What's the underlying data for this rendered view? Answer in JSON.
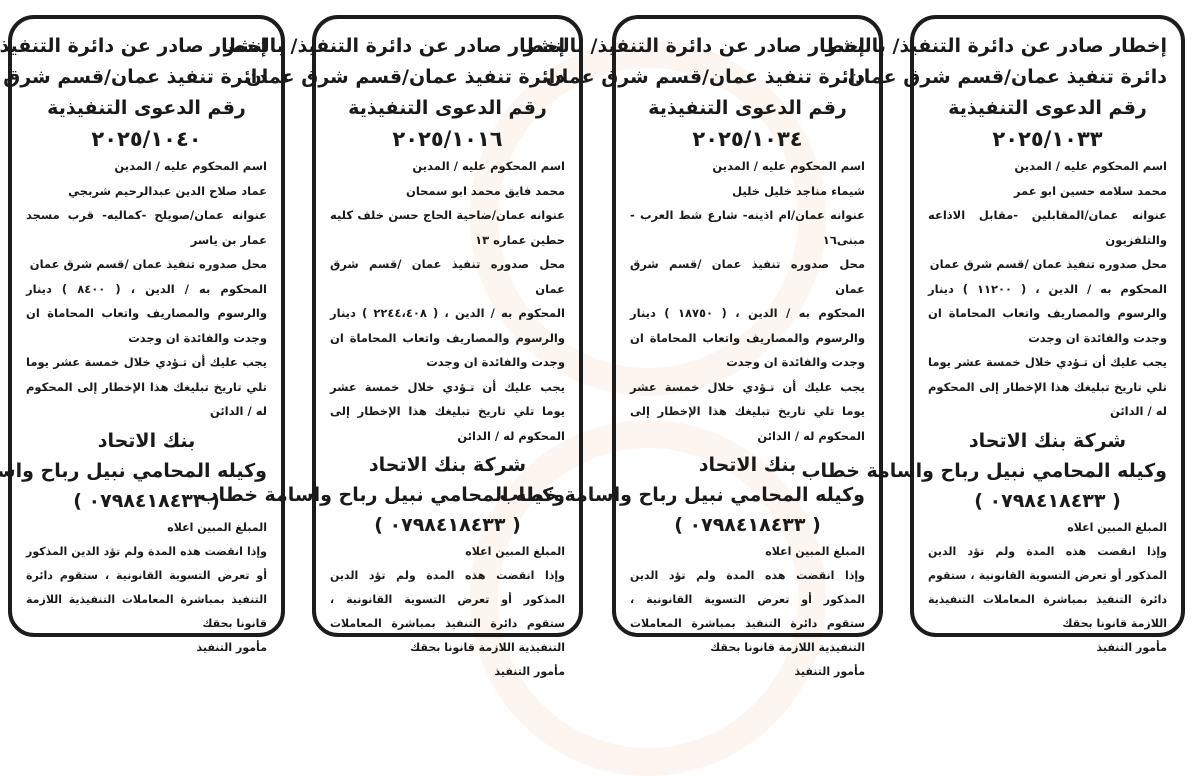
{
  "notices": [
    {
      "title_1": "إخطار صادر عن دائرة التنفيذ/ بالنشر",
      "title_2": "دائرة تنفيذ عمان/قسم شرق عمان",
      "title_3": "رقم الدعوى التنفيذية",
      "case_number": "٢٠٢٥/١٠٤٠",
      "debtor_label": "اسم المحكوم عليه / المدين",
      "debtor_name": "عماد صلاح الدين عبدالرحيم شربجي",
      "address": "عنوانه عمان/صويلح -كماليه- قرب مسجد عمار بن ياسر",
      "issued_at": "محل صدوره تنفيذ عمان /قسم شرق عمان",
      "amount": "المحكوم به / الدين ، ( ٨٤٠٠ ) دينار والرسوم والمصاريف واتعاب المحاماة ان وجدت والفائدة ان وجدت",
      "obligation": "يجب عليك أن تـؤدي  خلال خمسة عشر يوما تلي تاريخ تبليغك هذا الإخطار إلى المحكوم له / الدائن",
      "creditor": "بنك الاتحاد",
      "lawyer": "وكيله المحامي نبيل رباح واسامة خطاب",
      "phone": "( ٠٧٩٨٤١٨٤٣٣ )",
      "amount_ref": "المبلغ المبين اعلاه",
      "warning": "وإذا انقضت هذه المدة ولم تؤد  الدين المذكور أو تعرض التسوية القانونية ، ستقوم دائرة التنفيذ بمباشرة المعاملات التنفيذية اللازمة قانونا بحقك",
      "signature": "مأمور التنفيذ"
    },
    {
      "title_1": "إخطار صادر عن دائرة التنفيذ/ بالنشر",
      "title_2": "دائرة تنفيذ عمان/قسم شرق عمان",
      "title_3": "رقم الدعوى التنفيذية",
      "case_number": "٢٠٢٥/١٠١٦",
      "debtor_label": "اسم المحكوم عليه / المدين",
      "debtor_name": "محمد فايق محمد ابو سمحان",
      "address": "عنوانه عمان/ضاحية الحاج حسن خلف كليه حطين عماره ١٣",
      "issued_at": "محل صدوره تنفيذ عمان /قسم شرق عمان",
      "amount": "المحكوم به / الدين ، ( ٢٢٤٤،٤٠٨ ) دينار والرسوم والمصاريف واتعاب المحاماة ان وجدت والفائدة ان وجدت",
      "obligation": "يجب عليك أن تـؤدي  خلال خمسة عشر يوما تلي تاريخ تبليغك هذا الإخطار إلى المحكوم له / الدائن",
      "creditor": "شركة بنك الاتحاد",
      "lawyer": "وكيله المحامي نبيل رباح واسامة خطاب",
      "phone": "( ٠٧٩٨٤١٨٤٣٣ )",
      "amount_ref": "المبلغ المبين اعلاه",
      "warning": "وإذا انقضت هذه المدة ولم تؤد  الدين المذكور أو تعرض التسوية القانونية ، ستقوم دائرة التنفيذ بمباشرة المعاملات التنفيذية اللازمة قانونا بحقك",
      "signature": "مأمور التنفيذ"
    },
    {
      "title_1": "إخطار صادر عن دائرة التنفيذ/ بالنشر",
      "title_2": "دائرة تنفيذ عمان/قسم شرق عمان",
      "title_3": "رقم الدعوى التنفيذية",
      "case_number": "٢٠٢٥/١٠٣٤",
      "debtor_label": "اسم المحكوم عليه / المدين",
      "debtor_name": "شيماء مناجد خليل خليل",
      "address": "عنوانه عمان/ام اذينه- شارع شط العرب - مبنى١٦",
      "issued_at": "محل صدوره تنفيذ عمان /قسم شرق عمان",
      "amount": "المحكوم به / الدين ، ( ١٨٧٥٠ ) دينار والرسوم والمصاريف واتعاب المحاماة ان وجدت والفائدة ان وجدت",
      "obligation": "يجب عليك أن تـؤدي  خلال خمسة عشر يوما تلي تاريخ تبليغك هذا الإخطار إلى المحكوم له / الدائن",
      "creditor": "بنك الاتحاد",
      "lawyer": "وكيله المحامي نبيل رباح واسامة خطاب",
      "phone": "( ٠٧٩٨٤١٨٤٣٣ )",
      "amount_ref": "المبلغ المبين اعلاه",
      "warning": "وإذا انقضت هذه المدة ولم تؤد  الدين المذكور أو تعرض التسوية القانونية ، ستقوم دائرة التنفيذ بمباشرة المعاملات التنفيذية اللازمة قانونا بحقك",
      "signature": "مأمور التنفيذ"
    },
    {
      "title_1": "إخطار صادر عن دائرة التنفيذ/ بالنشر",
      "title_2": "دائرة تنفيذ عمان/قسم شرق عمان",
      "title_3": "رقم الدعوى التنفيذية",
      "case_number": "٢٠٢٥/١٠٣٣",
      "debtor_label": "اسم المحكوم عليه / المدين",
      "debtor_name": "محمد سلامه حسين ابو عمر",
      "address": "عنوانه عمان/المقابلين -مقابل الاذاعه والتلفزيون",
      "issued_at": "محل صدوره تنفيذ عمان /قسم شرق عمان",
      "amount": "المحكوم به / الدين ، ( ١١٢٠٠ ) دينار والرسوم والمصاريف واتعاب المحاماة ان وجدت والفائدة ان وجدت",
      "obligation": "يجب عليك أن تـؤدي  خلال خمسة عشر يوما تلي تاريخ تبليغك هذا الإخطار إلى المحكوم له / الدائن",
      "creditor": "شركة بنك الاتحاد",
      "lawyer": "وكيله المحامي نبيل رباح واسامة خطاب",
      "phone": "( ٠٧٩٨٤١٨٤٣٣ )",
      "amount_ref": "المبلغ المبين اعلاه",
      "warning": "وإذا انقضت هذه المدة ولم تؤد  الدين المذكور أو تعرض التسوية القانونية ، ستقوم دائرة التنفيذ بمباشرة المعاملات التنفيذية اللازمة قانونا بحقك",
      "signature": "مأمور التنفيذ"
    }
  ]
}
